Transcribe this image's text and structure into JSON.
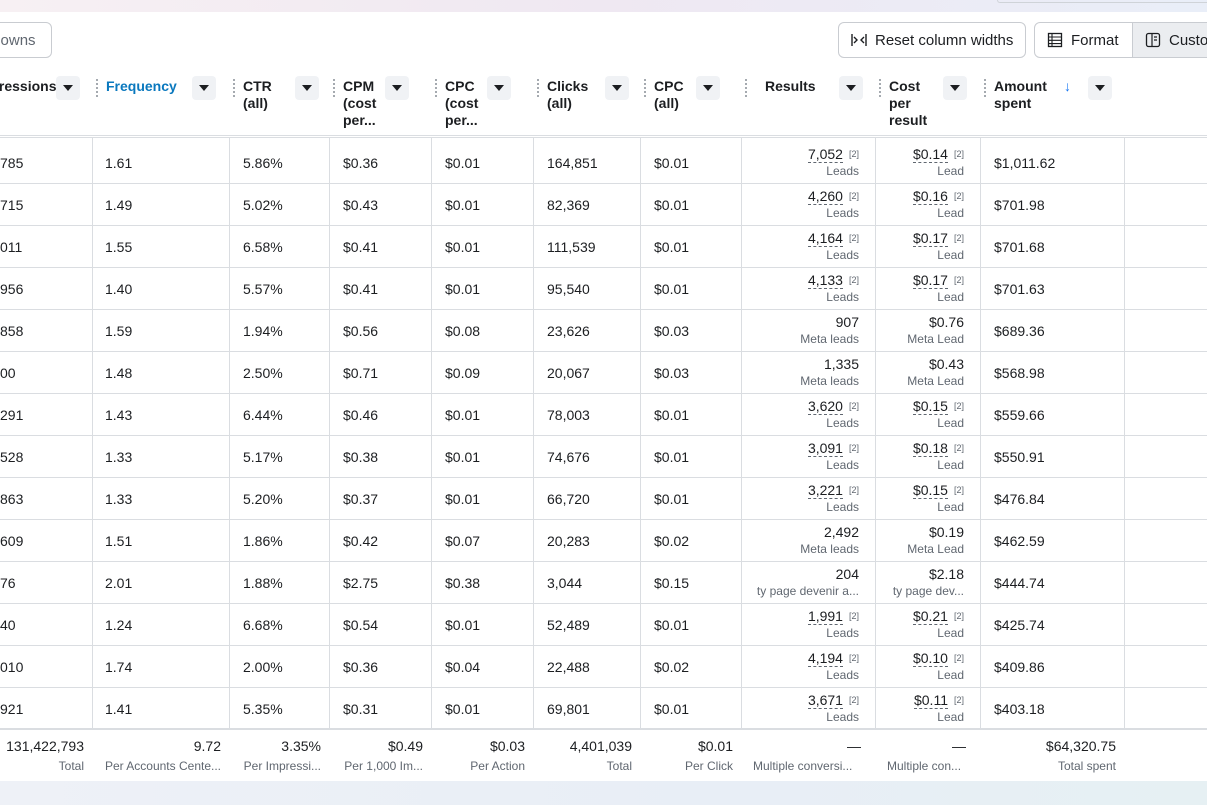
{
  "toolbar": {
    "breakdowns_label": "Breakdowns",
    "reset_label": "Reset column widths",
    "format_label": "Format",
    "customize_label": "Customize"
  },
  "columns": [
    {
      "key": "impressions",
      "label": "Impressions"
    },
    {
      "key": "frequency",
      "label": "Frequency"
    },
    {
      "key": "ctr",
      "label": "CTR\n(all)"
    },
    {
      "key": "cpm",
      "label": "CPM\n(cost\nper..."
    },
    {
      "key": "cpc_cost",
      "label": "CPC\n(cost\nper..."
    },
    {
      "key": "clicks",
      "label": "Clicks\n(all)"
    },
    {
      "key": "cpc_all",
      "label": "CPC\n(all)"
    },
    {
      "key": "results",
      "label": "Results"
    },
    {
      "key": "cpr",
      "label": "Cost\nper\nresult"
    },
    {
      "key": "spent",
      "label": "Amount\nspent"
    }
  ],
  "rows": [
    {
      "impressions": "785",
      "frequency": "1.61",
      "ctr": "5.86%",
      "cpm": "$0.36",
      "cpc_cost": "$0.01",
      "clicks": "164,851",
      "cpc_all": "$0.01",
      "results": "7,052",
      "results_ref": "[2]",
      "results_sub": "Leads",
      "cpr": "$0.14",
      "cpr_ref": "[2]",
      "cpr_sub": "Lead",
      "spent": "$1,011.62"
    },
    {
      "impressions": "715",
      "frequency": "1.49",
      "ctr": "5.02%",
      "cpm": "$0.43",
      "cpc_cost": "$0.01",
      "clicks": "82,369",
      "cpc_all": "$0.01",
      "results": "4,260",
      "results_ref": "[2]",
      "results_sub": "Leads",
      "cpr": "$0.16",
      "cpr_ref": "[2]",
      "cpr_sub": "Lead",
      "spent": "$701.98"
    },
    {
      "impressions": "011",
      "frequency": "1.55",
      "ctr": "6.58%",
      "cpm": "$0.41",
      "cpc_cost": "$0.01",
      "clicks": "111,539",
      "cpc_all": "$0.01",
      "results": "4,164",
      "results_ref": "[2]",
      "results_sub": "Leads",
      "cpr": "$0.17",
      "cpr_ref": "[2]",
      "cpr_sub": "Lead",
      "spent": "$701.68"
    },
    {
      "impressions": "956",
      "frequency": "1.40",
      "ctr": "5.57%",
      "cpm": "$0.41",
      "cpc_cost": "$0.01",
      "clicks": "95,540",
      "cpc_all": "$0.01",
      "results": "4,133",
      "results_ref": "[2]",
      "results_sub": "Leads",
      "cpr": "$0.17",
      "cpr_ref": "[2]",
      "cpr_sub": "Lead",
      "spent": "$701.63"
    },
    {
      "impressions": "858",
      "frequency": "1.59",
      "ctr": "1.94%",
      "cpm": "$0.56",
      "cpc_cost": "$0.08",
      "clicks": "23,626",
      "cpc_all": "$0.03",
      "results": "907",
      "results_ref": "",
      "results_sub": "Meta leads",
      "cpr": "$0.76",
      "cpr_ref": "",
      "cpr_sub": "Meta Lead",
      "spent": "$689.36"
    },
    {
      "impressions": "00",
      "frequency": "1.48",
      "ctr": "2.50%",
      "cpm": "$0.71",
      "cpc_cost": "$0.09",
      "clicks": "20,067",
      "cpc_all": "$0.03",
      "results": "1,335",
      "results_ref": "",
      "results_sub": "Meta leads",
      "cpr": "$0.43",
      "cpr_ref": "",
      "cpr_sub": "Meta Lead",
      "spent": "$568.98"
    },
    {
      "impressions": "291",
      "frequency": "1.43",
      "ctr": "6.44%",
      "cpm": "$0.46",
      "cpc_cost": "$0.01",
      "clicks": "78,003",
      "cpc_all": "$0.01",
      "results": "3,620",
      "results_ref": "[2]",
      "results_sub": "Leads",
      "cpr": "$0.15",
      "cpr_ref": "[2]",
      "cpr_sub": "Lead",
      "spent": "$559.66"
    },
    {
      "impressions": "528",
      "frequency": "1.33",
      "ctr": "5.17%",
      "cpm": "$0.38",
      "cpc_cost": "$0.01",
      "clicks": "74,676",
      "cpc_all": "$0.01",
      "results": "3,091",
      "results_ref": "[2]",
      "results_sub": "Leads",
      "cpr": "$0.18",
      "cpr_ref": "[2]",
      "cpr_sub": "Lead",
      "spent": "$550.91"
    },
    {
      "impressions": "863",
      "frequency": "1.33",
      "ctr": "5.20%",
      "cpm": "$0.37",
      "cpc_cost": "$0.01",
      "clicks": "66,720",
      "cpc_all": "$0.01",
      "results": "3,221",
      "results_ref": "[2]",
      "results_sub": "Leads",
      "cpr": "$0.15",
      "cpr_ref": "[2]",
      "cpr_sub": "Lead",
      "spent": "$476.84"
    },
    {
      "impressions": "609",
      "frequency": "1.51",
      "ctr": "1.86%",
      "cpm": "$0.42",
      "cpc_cost": "$0.07",
      "clicks": "20,283",
      "cpc_all": "$0.02",
      "results": "2,492",
      "results_ref": "",
      "results_sub": "Meta leads",
      "cpr": "$0.19",
      "cpr_ref": "",
      "cpr_sub": "Meta Lead",
      "spent": "$462.59"
    },
    {
      "impressions": "76",
      "frequency": "2.01",
      "ctr": "1.88%",
      "cpm": "$2.75",
      "cpc_cost": "$0.38",
      "clicks": "3,044",
      "cpc_all": "$0.15",
      "results": "204",
      "results_ref": "",
      "results_sub": "ty page devenir a...",
      "cpr": "$2.18",
      "cpr_ref": "",
      "cpr_sub": "ty page dev...",
      "spent": "$444.74"
    },
    {
      "impressions": "40",
      "frequency": "1.24",
      "ctr": "6.68%",
      "cpm": "$0.54",
      "cpc_cost": "$0.01",
      "clicks": "52,489",
      "cpc_all": "$0.01",
      "results": "1,991",
      "results_ref": "[2]",
      "results_sub": "Leads",
      "cpr": "$0.21",
      "cpr_ref": "[2]",
      "cpr_sub": "Lead",
      "spent": "$425.74"
    },
    {
      "impressions": "010",
      "frequency": "1.74",
      "ctr": "2.00%",
      "cpm": "$0.36",
      "cpc_cost": "$0.04",
      "clicks": "22,488",
      "cpc_all": "$0.02",
      "results": "4,194",
      "results_ref": "[2]",
      "results_sub": "Leads",
      "cpr": "$0.10",
      "cpr_ref": "[2]",
      "cpr_sub": "Lead",
      "spent": "$409.86"
    },
    {
      "impressions": "921",
      "frequency": "1.41",
      "ctr": "5.35%",
      "cpm": "$0.31",
      "cpc_cost": "$0.01",
      "clicks": "69,801",
      "cpc_all": "$0.01",
      "results": "3,671",
      "results_ref": "[2]",
      "results_sub": "Leads",
      "cpr": "$0.11",
      "cpr_ref": "[2]",
      "cpr_sub": "Lead",
      "spent": "$403.18"
    }
  ],
  "totals": {
    "impressions": {
      "value": "131,422,793",
      "label": "Total"
    },
    "frequency": {
      "value": "9.72",
      "label": "Per Accounts Cente..."
    },
    "ctr": {
      "value": "3.35%",
      "label": "Per Impressi..."
    },
    "cpm": {
      "value": "$0.49",
      "label": "Per 1,000 Im..."
    },
    "cpc_cost": {
      "value": "$0.03",
      "label": "Per Action"
    },
    "clicks": {
      "value": "4,401,039",
      "label": "Total"
    },
    "cpc_all": {
      "value": "$0.01",
      "label": "Per Click"
    },
    "results": {
      "value": "—",
      "label": "Multiple conversi..."
    },
    "cpr": {
      "value": "—",
      "label": "Multiple con..."
    },
    "spent": {
      "value": "$64,320.75",
      "label": "Total spent"
    }
  },
  "colors": {
    "accent": "#0a78be",
    "sort_arrow": "#1877f2",
    "border": "#dadde1"
  }
}
